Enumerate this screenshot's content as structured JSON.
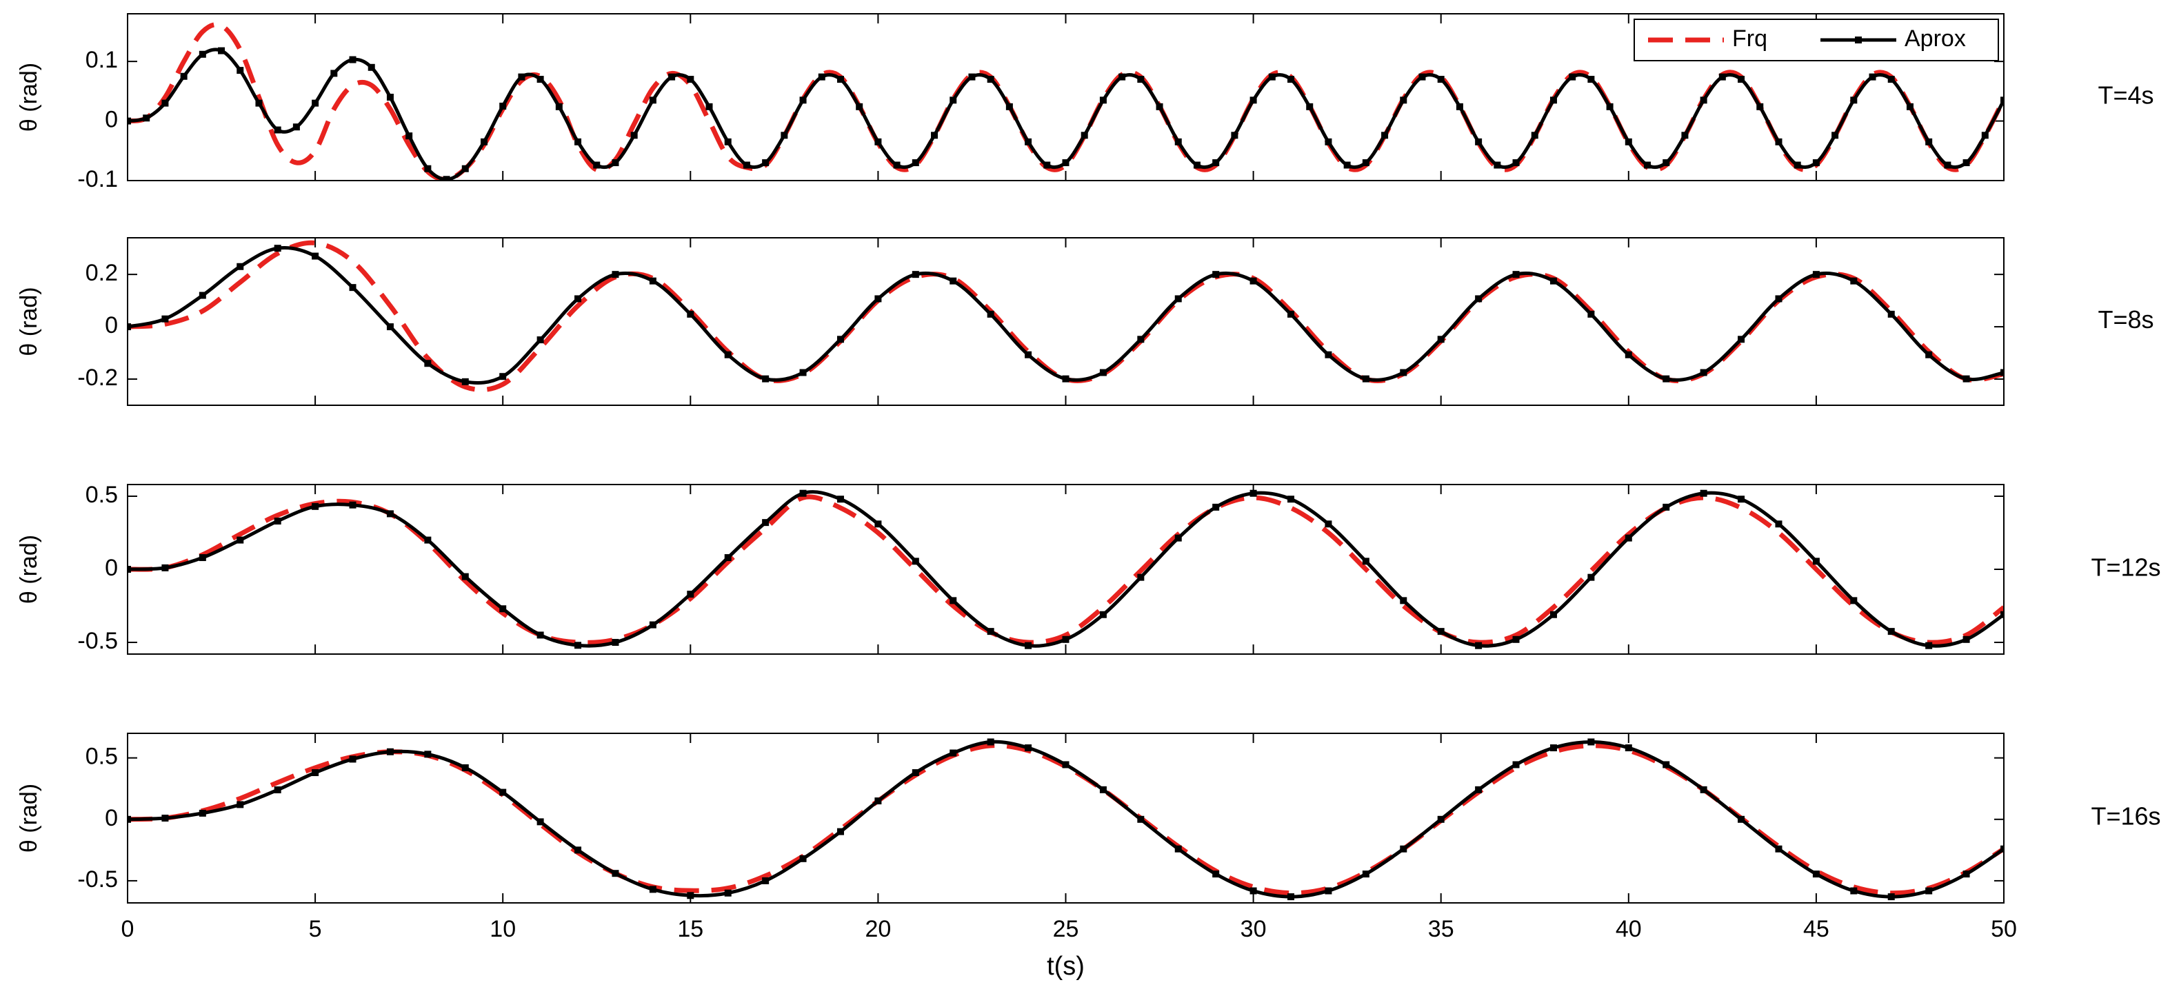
{
  "chart_data": [
    {
      "type": "line",
      "ylabel": "θ (rad)",
      "annotation": "T=4s",
      "xlim": [
        0,
        50
      ],
      "ylim": [
        -0.1,
        0.18
      ],
      "yticks": [
        -0.1,
        0,
        0.1
      ],
      "legend": "upper right",
      "x": [
        0,
        0.5,
        1,
        1.5,
        2,
        2.5,
        3,
        3.5,
        4,
        4.5,
        5,
        5.5,
        6,
        6.5,
        7,
        7.5,
        8,
        8.5,
        9,
        9.5,
        10,
        10.5,
        11,
        11.5,
        12,
        12.5,
        13,
        13.5,
        14,
        14.5,
        15,
        15.5,
        16,
        16.5,
        17,
        17.5,
        18,
        18.5,
        19,
        19.5,
        20,
        20.5,
        21,
        21.5,
        22,
        22.5,
        23,
        23.5,
        24,
        24.5,
        25,
        25.5,
        26,
        26.5,
        27,
        27.5,
        28,
        28.5,
        29,
        29.5,
        30,
        30.5,
        31,
        31.5,
        32,
        32.5,
        33,
        33.5,
        34,
        34.5,
        35,
        35.5,
        36,
        36.5,
        37,
        37.5,
        38,
        38.5,
        39,
        39.5,
        40,
        40.5,
        41,
        41.5,
        42,
        42.5,
        43,
        43.5,
        44,
        44.5,
        45,
        45.5,
        46,
        46.5,
        47,
        47.5,
        48,
        48.5,
        49,
        49.5,
        50
      ],
      "series": [
        {
          "name": "Frq",
          "color": "#e8231f",
          "linestyle": "dashed",
          "values": [
            0,
            0.005,
            0.04,
            0.1,
            0.15,
            0.16,
            0.12,
            0.04,
            -0.04,
            -0.07,
            -0.05,
            0.02,
            0.06,
            0.06,
            0.02,
            -0.04,
            -0.085,
            -0.098,
            -0.08,
            -0.04,
            0.02,
            0.068,
            0.075,
            0.035,
            -0.04,
            -0.082,
            -0.065,
            -0.005,
            0.055,
            0.08,
            0.06,
            0,
            -0.06,
            -0.078,
            -0.074,
            -0.025,
            0.037,
            0.078,
            0.074,
            0.025,
            -0.037,
            -0.078,
            -0.074,
            -0.025,
            0.037,
            0.078,
            0.074,
            0.025,
            -0.037,
            -0.078,
            -0.074,
            -0.025,
            0.037,
            0.078,
            0.074,
            0.025,
            -0.037,
            -0.078,
            -0.074,
            -0.025,
            0.037,
            0.078,
            0.074,
            0.025,
            -0.037,
            -0.078,
            -0.074,
            -0.025,
            0.037,
            0.078,
            0.074,
            0.025,
            -0.037,
            -0.078,
            -0.074,
            -0.025,
            0.037,
            0.078,
            0.074,
            0.025,
            -0.037,
            -0.078,
            -0.074,
            -0.025,
            0.037,
            0.078,
            0.074,
            0.025,
            -0.037,
            -0.078,
            -0.074,
            -0.025,
            0.037,
            0.078,
            0.074,
            0.025,
            -0.037,
            -0.078,
            -0.074,
            -0.025,
            0.037
          ]
        },
        {
          "name": "Aprox",
          "color": "#000000",
          "linestyle": "solid",
          "marker": "square",
          "values": [
            0,
            0.005,
            0.03,
            0.075,
            0.112,
            0.118,
            0.085,
            0.03,
            -0.015,
            -0.01,
            0.03,
            0.08,
            0.103,
            0.09,
            0.04,
            -0.025,
            -0.08,
            -0.098,
            -0.08,
            -0.035,
            0.025,
            0.074,
            0.07,
            0.024,
            -0.035,
            -0.074,
            -0.07,
            -0.024,
            0.035,
            0.074,
            0.07,
            0.024,
            -0.035,
            -0.074,
            -0.07,
            -0.024,
            0.035,
            0.074,
            0.07,
            0.024,
            -0.035,
            -0.074,
            -0.07,
            -0.024,
            0.035,
            0.074,
            0.07,
            0.024,
            -0.035,
            -0.074,
            -0.07,
            -0.024,
            0.035,
            0.074,
            0.07,
            0.024,
            -0.035,
            -0.074,
            -0.07,
            -0.024,
            0.035,
            0.074,
            0.07,
            0.024,
            -0.035,
            -0.074,
            -0.07,
            -0.024,
            0.035,
            0.074,
            0.07,
            0.024,
            -0.035,
            -0.074,
            -0.07,
            -0.024,
            0.035,
            0.074,
            0.07,
            0.024,
            -0.035,
            -0.074,
            -0.07,
            -0.024,
            0.035,
            0.074,
            0.07,
            0.024,
            -0.035,
            -0.074,
            -0.07,
            -0.024,
            0.035,
            0.074,
            0.07,
            0.024,
            -0.035,
            -0.074,
            -0.07,
            -0.024,
            0.035
          ]
        }
      ]
    },
    {
      "type": "line",
      "ylabel": "θ (rad)",
      "annotation": "T=8s",
      "xlim": [
        0,
        50
      ],
      "ylim": [
        -0.3,
        0.34
      ],
      "yticks": [
        -0.2,
        0,
        0.2
      ],
      "x": [
        0,
        1,
        2,
        3,
        4,
        5,
        6,
        7,
        8,
        9,
        10,
        11,
        12,
        13,
        14,
        15,
        16,
        17,
        18,
        19,
        20,
        21,
        22,
        23,
        24,
        25,
        26,
        27,
        28,
        29,
        30,
        31,
        32,
        33,
        34,
        35,
        36,
        37,
        38,
        39,
        40,
        41,
        42,
        43,
        44,
        45,
        46,
        47,
        48,
        49,
        50
      ],
      "series": [
        {
          "color": "#e8231f",
          "linestyle": "dashed",
          "values": [
            0,
            0.01,
            0.06,
            0.17,
            0.28,
            0.32,
            0.25,
            0.08,
            -0.12,
            -0.23,
            -0.22,
            -0.08,
            0.08,
            0.19,
            0.185,
            0.06,
            -0.095,
            -0.2,
            -0.18,
            -0.055,
            0.1,
            0.19,
            0.185,
            0.06,
            -0.095,
            -0.2,
            -0.18,
            -0.055,
            0.1,
            0.19,
            0.185,
            0.06,
            -0.095,
            -0.2,
            -0.18,
            -0.055,
            0.1,
            0.19,
            0.185,
            0.06,
            -0.095,
            -0.2,
            -0.18,
            -0.055,
            0.1,
            0.19,
            0.185,
            0.06,
            -0.095,
            -0.2,
            -0.18
          ]
        },
        {
          "color": "#000000",
          "linestyle": "solid",
          "marker": "square",
          "values": [
            0,
            0.03,
            0.12,
            0.23,
            0.3,
            0.27,
            0.15,
            0,
            -0.14,
            -0.21,
            -0.19,
            -0.05,
            0.107,
            0.2,
            0.175,
            0.048,
            -0.107,
            -0.199,
            -0.175,
            -0.048,
            0.107,
            0.2,
            0.175,
            0.048,
            -0.107,
            -0.199,
            -0.175,
            -0.048,
            0.107,
            0.2,
            0.175,
            0.048,
            -0.107,
            -0.199,
            -0.175,
            -0.048,
            0.107,
            0.2,
            0.175,
            0.048,
            -0.107,
            -0.199,
            -0.175,
            -0.048,
            0.107,
            0.2,
            0.175,
            0.048,
            -0.107,
            -0.199,
            -0.175
          ]
        }
      ]
    },
    {
      "type": "line",
      "ylabel": "θ (rad)",
      "annotation": "T=12s",
      "xlim": [
        0,
        50
      ],
      "ylim": [
        -0.58,
        0.58
      ],
      "yticks": [
        -0.5,
        0,
        0.5
      ],
      "x": [
        0,
        1,
        2,
        3,
        4,
        5,
        6,
        7,
        8,
        9,
        10,
        11,
        12,
        13,
        14,
        15,
        16,
        17,
        18,
        19,
        20,
        21,
        22,
        23,
        24,
        25,
        26,
        27,
        28,
        29,
        30,
        31,
        32,
        33,
        34,
        35,
        36,
        37,
        38,
        39,
        40,
        41,
        42,
        43,
        44,
        45,
        46,
        47,
        48,
        49,
        50
      ],
      "series": [
        {
          "color": "#e8231f",
          "linestyle": "dashed",
          "values": [
            0,
            0.01,
            0.1,
            0.24,
            0.37,
            0.45,
            0.46,
            0.38,
            0.18,
            -0.08,
            -0.3,
            -0.45,
            -0.5,
            -0.48,
            -0.38,
            -0.2,
            0.05,
            0.28,
            0.49,
            0.42,
            0.25,
            0,
            -0.25,
            -0.43,
            -0.5,
            -0.45,
            -0.26,
            -0.01,
            0.24,
            0.42,
            0.49,
            0.42,
            0.25,
            0,
            -0.25,
            -0.43,
            -0.5,
            -0.45,
            -0.26,
            -0.01,
            0.24,
            0.42,
            0.49,
            0.42,
            0.25,
            0,
            -0.25,
            -0.43,
            -0.5,
            -0.45,
            -0.26
          ]
        },
        {
          "color": "#000000",
          "linestyle": "solid",
          "marker": "square",
          "values": [
            0,
            0.01,
            0.08,
            0.2,
            0.33,
            0.43,
            0.44,
            0.38,
            0.2,
            -0.05,
            -0.27,
            -0.45,
            -0.52,
            -0.5,
            -0.38,
            -0.17,
            0.08,
            0.32,
            0.52,
            0.48,
            0.31,
            0.055,
            -0.214,
            -0.425,
            -0.522,
            -0.48,
            -0.31,
            -0.055,
            0.214,
            0.425,
            0.52,
            0.48,
            0.31,
            0.055,
            -0.214,
            -0.425,
            -0.522,
            -0.48,
            -0.31,
            -0.055,
            0.214,
            0.425,
            0.52,
            0.48,
            0.31,
            0.055,
            -0.214,
            -0.425,
            -0.522,
            -0.48,
            -0.31
          ]
        }
      ]
    },
    {
      "type": "line",
      "ylabel": "θ (rad)",
      "annotation": "T=16s",
      "xlabel": "t(s)",
      "xlim": [
        0,
        50
      ],
      "xticks": [
        0,
        5,
        10,
        15,
        20,
        25,
        30,
        35,
        40,
        45,
        50
      ],
      "ylim": [
        -0.68,
        0.7
      ],
      "yticks": [
        -0.5,
        0,
        0.5
      ],
      "x": [
        0,
        1,
        2,
        3,
        4,
        5,
        6,
        7,
        8,
        9,
        10,
        11,
        12,
        13,
        14,
        15,
        16,
        17,
        18,
        19,
        20,
        21,
        22,
        23,
        24,
        25,
        26,
        27,
        28,
        29,
        30,
        31,
        32,
        33,
        34,
        35,
        36,
        37,
        38,
        39,
        40,
        41,
        42,
        43,
        44,
        45,
        46,
        47,
        48,
        49,
        50
      ],
      "series": [
        {
          "color": "#e8231f",
          "linestyle": "dashed",
          "values": [
            0,
            0.01,
            0.07,
            0.17,
            0.3,
            0.42,
            0.51,
            0.55,
            0.52,
            0.4,
            0.2,
            -0.04,
            -0.27,
            -0.44,
            -0.55,
            -0.58,
            -0.56,
            -0.46,
            -0.3,
            -0.08,
            0.15,
            0.36,
            0.52,
            0.6,
            0.56,
            0.43,
            0.24,
            0.01,
            -0.22,
            -0.42,
            -0.55,
            -0.6,
            -0.56,
            -0.43,
            -0.24,
            -0.01,
            0.22,
            0.42,
            0.55,
            0.6,
            0.56,
            0.43,
            0.24,
            0.01,
            -0.22,
            -0.42,
            -0.55,
            -0.6,
            -0.56,
            -0.43,
            -0.24
          ]
        },
        {
          "color": "#000000",
          "linestyle": "solid",
          "marker": "square",
          "values": [
            0,
            0.01,
            0.05,
            0.12,
            0.24,
            0.38,
            0.49,
            0.55,
            0.53,
            0.42,
            0.22,
            -0.02,
            -0.25,
            -0.44,
            -0.57,
            -0.62,
            -0.6,
            -0.5,
            -0.32,
            -0.1,
            0.15,
            0.38,
            0.54,
            0.63,
            0.582,
            0.445,
            0.241,
            0,
            -0.241,
            -0.445,
            -0.582,
            -0.63,
            -0.582,
            -0.445,
            -0.241,
            0,
            0.241,
            0.445,
            0.582,
            0.63,
            0.582,
            0.445,
            0.241,
            0,
            -0.241,
            -0.445,
            -0.582,
            -0.63,
            -0.582,
            -0.445,
            -0.241
          ]
        }
      ]
    }
  ]
}
